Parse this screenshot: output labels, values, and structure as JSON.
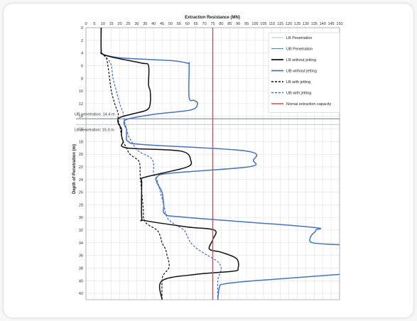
{
  "chart_data": {
    "type": "line",
    "xlabel": "Extraction Resistance (MN)",
    "ylabel": "Depth of Penetration (m)",
    "xlim": [
      0,
      150
    ],
    "ylim": [
      0,
      43
    ],
    "x_ticks": [
      0,
      5,
      10,
      15,
      20,
      25,
      30,
      35,
      40,
      45,
      50,
      55,
      60,
      65,
      70,
      75,
      80,
      85,
      90,
      95,
      100,
      105,
      110,
      115,
      120,
      125,
      130,
      135,
      140,
      145,
      150
    ],
    "y_ticks": [
      0,
      2,
      4,
      6,
      8,
      10,
      12,
      14,
      16,
      18,
      20,
      22,
      24,
      26,
      28,
      30,
      32,
      34,
      36,
      38,
      40,
      42
    ],
    "grid": true,
    "legend_position": "top-right",
    "annotations": [
      {
        "text": "UB penetration: 14.4 m",
        "depth": 14.4
      },
      {
        "text": "LB penetration: 15.3 m",
        "depth": 15.3
      }
    ],
    "horizontal_lines": [
      {
        "name": "UB Penetration",
        "depth": 14.4,
        "color": "#5a7fb5"
      },
      {
        "name": "LB Penetration",
        "depth": 15.3,
        "color": "#a9c3e6"
      }
    ],
    "series": [
      {
        "name": "LB without jetting",
        "color": "#111111",
        "dash": false,
        "points": [
          [
            9,
            0
          ],
          [
            9,
            3.5
          ],
          [
            10,
            4.2
          ],
          [
            18,
            4.8
          ],
          [
            33,
            5.6
          ],
          [
            37,
            6
          ],
          [
            37,
            9
          ],
          [
            38,
            10
          ],
          [
            38,
            12
          ],
          [
            36,
            13
          ],
          [
            28,
            13.6
          ],
          [
            20,
            14.2
          ],
          [
            19,
            15
          ],
          [
            21,
            16
          ],
          [
            21,
            17
          ],
          [
            22,
            18
          ],
          [
            24,
            19
          ],
          [
            56,
            19.5
          ],
          [
            62,
            21
          ],
          [
            60,
            22
          ],
          [
            45,
            23
          ],
          [
            33,
            23.8
          ],
          [
            33,
            24.5
          ],
          [
            33,
            30
          ],
          [
            35,
            30.5
          ],
          [
            60,
            31.5
          ],
          [
            76,
            32
          ],
          [
            75,
            33.5
          ],
          [
            73,
            35
          ],
          [
            80,
            35.5
          ],
          [
            89,
            36.5
          ],
          [
            90,
            38
          ],
          [
            87,
            38.5
          ],
          [
            65,
            39
          ],
          [
            45,
            40
          ],
          [
            45,
            43
          ]
        ]
      },
      {
        "name": "UB without jetting",
        "color": "#4472c4",
        "dash": false,
        "points": [
          [
            9,
            0
          ],
          [
            9,
            3.5
          ],
          [
            10,
            4.2
          ],
          [
            22,
            4.8
          ],
          [
            50,
            5.2
          ],
          [
            60,
            5.6
          ],
          [
            61,
            6
          ],
          [
            61,
            11
          ],
          [
            64,
            11.5
          ],
          [
            66,
            12
          ],
          [
            62,
            13
          ],
          [
            40,
            13.7
          ],
          [
            24,
            14.5
          ],
          [
            23,
            15.5
          ],
          [
            24,
            16
          ],
          [
            24,
            17
          ],
          [
            25,
            18
          ],
          [
            35,
            18.5
          ],
          [
            95,
            19.5
          ],
          [
            99,
            21
          ],
          [
            96,
            22
          ],
          [
            50,
            23
          ],
          [
            42,
            23.6
          ],
          [
            42,
            24.5
          ],
          [
            45,
            26
          ],
          [
            46,
            28
          ],
          [
            47,
            29.5
          ],
          [
            60,
            30
          ],
          [
            132,
            31.5
          ],
          [
            136,
            32
          ],
          [
            133,
            33
          ],
          [
            134,
            34
          ],
          [
            150,
            34.3
          ]
        ]
      },
      {
        "name": "LB with jetting",
        "color": "#111111",
        "dash": true,
        "points": [
          [
            9,
            0
          ],
          [
            9,
            3.5
          ],
          [
            10,
            4.2
          ],
          [
            12,
            4.8
          ],
          [
            13,
            6
          ],
          [
            14,
            8
          ],
          [
            15,
            10
          ],
          [
            17,
            12
          ],
          [
            19,
            13.5
          ],
          [
            19,
            14.5
          ],
          [
            20,
            15.5
          ],
          [
            21,
            17
          ],
          [
            22,
            18
          ],
          [
            24,
            19
          ],
          [
            26,
            20
          ],
          [
            31,
            21
          ],
          [
            32,
            22
          ],
          [
            32,
            23
          ],
          [
            33,
            26
          ],
          [
            34,
            29
          ],
          [
            34,
            30
          ],
          [
            36,
            31
          ],
          [
            42,
            32
          ],
          [
            44,
            33
          ],
          [
            45,
            34
          ],
          [
            47,
            35
          ],
          [
            48,
            36
          ],
          [
            49,
            37
          ],
          [
            49,
            38
          ],
          [
            46,
            39
          ],
          [
            45,
            40
          ],
          [
            45,
            43
          ]
        ]
      },
      {
        "name": "UB with jetting",
        "color": "#4472c4",
        "dash": true,
        "points": [
          [
            9,
            0
          ],
          [
            9,
            3.5
          ],
          [
            10,
            4.2
          ],
          [
            13,
            5
          ],
          [
            15,
            6
          ],
          [
            16,
            8
          ],
          [
            18,
            10
          ],
          [
            20,
            12
          ],
          [
            22,
            13.5
          ],
          [
            23,
            15
          ],
          [
            24,
            16
          ],
          [
            25,
            17
          ],
          [
            27,
            18
          ],
          [
            31,
            19.5
          ],
          [
            38,
            20.5
          ],
          [
            40,
            21.5
          ],
          [
            40,
            23
          ],
          [
            42,
            24
          ],
          [
            44,
            26
          ],
          [
            46,
            28
          ],
          [
            48,
            30
          ],
          [
            52,
            31
          ],
          [
            58,
            32
          ],
          [
            60,
            33
          ],
          [
            62,
            34
          ],
          [
            66,
            35
          ],
          [
            72,
            36
          ],
          [
            78,
            37
          ],
          [
            80,
            38
          ],
          [
            79,
            39
          ],
          [
            78,
            40
          ],
          [
            78,
            43
          ]
        ]
      },
      {
        "name": "Nornal extraction capacity",
        "color": "#e8434b",
        "dash": false,
        "points": [
          [
            75,
            0
          ],
          [
            75,
            43
          ]
        ]
      }
    ],
    "extra_series_segment": {
      "name": "UB without jetting (lower)",
      "color": "#4472c4",
      "points": [
        [
          150,
          39
        ],
        [
          100,
          40
        ],
        [
          82,
          40.5
        ],
        [
          79,
          41
        ],
        [
          78,
          43
        ]
      ]
    },
    "legend": [
      {
        "label": "LB Penetration",
        "color": "#a9c3e6",
        "dash": false,
        "weight": 1
      },
      {
        "label": "UB Penetration",
        "color": "#5a7fb5",
        "dash": false,
        "weight": 1
      },
      {
        "label": "LB without jetting",
        "color": "#111111",
        "dash": false,
        "weight": 1.8
      },
      {
        "label": "UB without jetting",
        "color": "#4472c4",
        "dash": false,
        "weight": 1.8
      },
      {
        "label": "LB with jetting",
        "color": "#111111",
        "dash": true,
        "weight": 1.4
      },
      {
        "label": "UB with jetting",
        "color": "#4472c4",
        "dash": true,
        "weight": 1.4
      },
      {
        "label": "Nornal extraction capacity",
        "color": "#e8434b",
        "dash": false,
        "weight": 1.4
      }
    ]
  }
}
